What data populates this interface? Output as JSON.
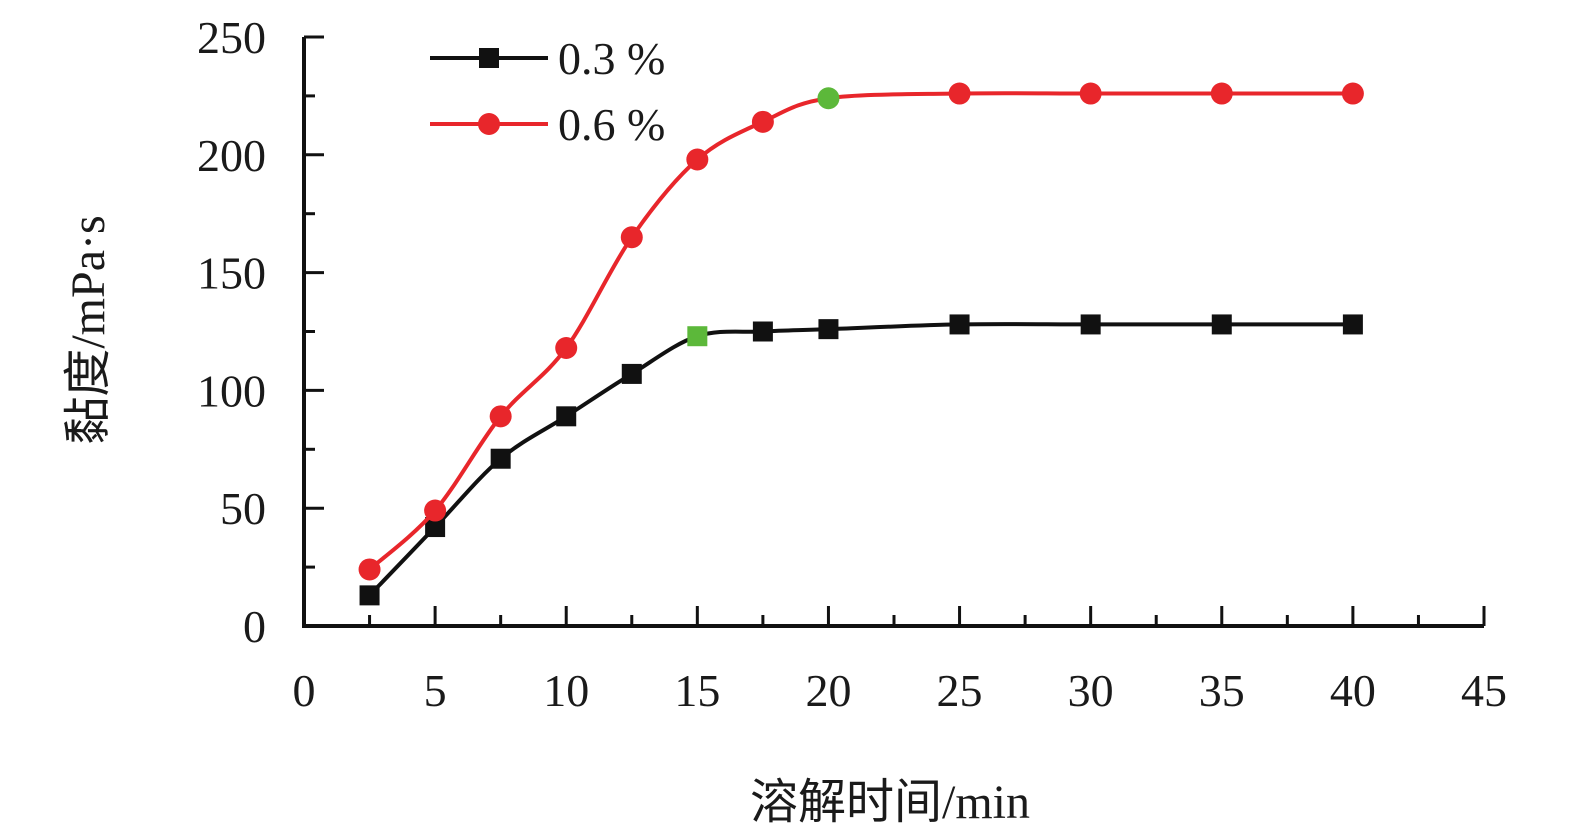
{
  "chart_data": {
    "type": "line",
    "xlabel": "溶解时间/min",
    "ylabel": "黏度/mPa·s",
    "xlim": [
      0,
      45
    ],
    "ylim": [
      0,
      250
    ],
    "x_ticks": [
      0,
      5,
      10,
      15,
      20,
      25,
      30,
      35,
      40,
      45
    ],
    "y_ticks": [
      0,
      50,
      100,
      150,
      200,
      250
    ],
    "x_ticks_label": [
      "0",
      "5",
      "10",
      "15",
      "20",
      "25",
      "30",
      "35",
      "40",
      "45"
    ],
    "y_ticks_label": [
      "0",
      "50",
      "100",
      "150",
      "200",
      "250"
    ],
    "grid": false,
    "legend_position": "top-left",
    "series": [
      {
        "name": "0.3 %",
        "color": "#111111",
        "marker": "square",
        "x": [
          2.5,
          5,
          7.5,
          10,
          12.5,
          15,
          17.5,
          20,
          25,
          30,
          35,
          40
        ],
        "y": [
          13,
          42,
          71,
          89,
          107,
          123,
          125,
          126,
          128,
          128,
          128,
          128
        ],
        "highlight_index": 5
      },
      {
        "name": "0.6 %",
        "color": "#e8262b",
        "marker": "circle",
        "x": [
          2.5,
          5,
          7.5,
          10,
          12.5,
          15,
          17.5,
          20,
          25,
          30,
          35,
          40
        ],
        "y": [
          24,
          49,
          89,
          118,
          165,
          198,
          214,
          224,
          226,
          226,
          226,
          226
        ],
        "highlight_index": 7
      }
    ],
    "highlight_color": "#5cb83a"
  }
}
